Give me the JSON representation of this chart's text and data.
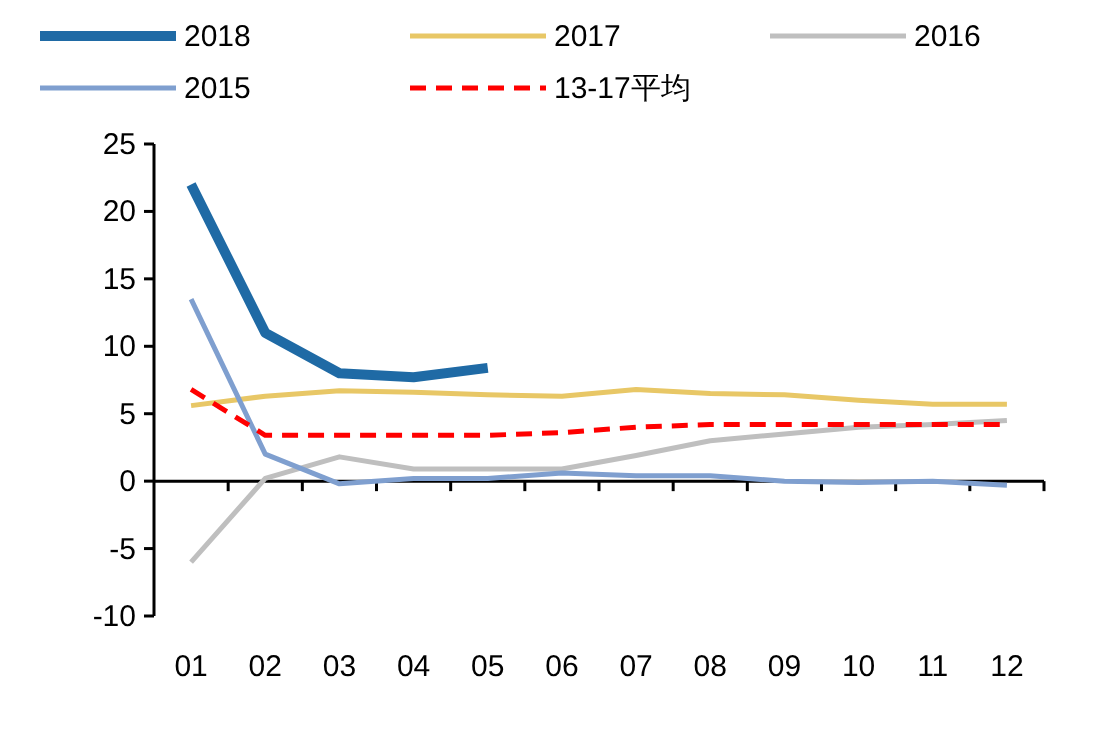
{
  "chart_data": {
    "type": "line",
    "categories": [
      "01",
      "02",
      "03",
      "04",
      "05",
      "06",
      "07",
      "08",
      "09",
      "10",
      "11",
      "12"
    ],
    "series": [
      {
        "name": "2018",
        "color": "#1f6aa5",
        "values": [
          22,
          11,
          8,
          7.7,
          8.4,
          null,
          null,
          null,
          null,
          null,
          null,
          null
        ]
      },
      {
        "name": "2017",
        "color": "#e8c766",
        "values": [
          5.6,
          6.3,
          6.7,
          6.6,
          6.4,
          6.3,
          6.8,
          6.5,
          6.4,
          6.0,
          5.7,
          5.7
        ]
      },
      {
        "name": "2016",
        "color": "#bfbfbf",
        "values": [
          -6,
          0.2,
          1.8,
          0.9,
          0.9,
          0.9,
          1.9,
          3.0,
          3.5,
          4.0,
          4.2,
          4.5
        ]
      },
      {
        "name": "2015",
        "color": "#7f9fcf",
        "values": [
          13.5,
          2,
          -0.2,
          0.2,
          0.2,
          0.6,
          0.4,
          0.4,
          0,
          -0.1,
          0,
          -0.3
        ]
      },
      {
        "name": "13-17平均",
        "color": "#ff0000",
        "line_style": "dashed",
        "values": [
          6.8,
          3.4,
          3.4,
          3.4,
          3.4,
          3.6,
          4.0,
          4.2,
          4.2,
          4.2,
          4.2,
          4.2
        ]
      }
    ],
    "ylim": [
      -10,
      25
    ],
    "yticks": [
      -10,
      -5,
      0,
      5,
      10,
      15,
      20,
      25
    ],
    "legend": "top",
    "marker": "none"
  }
}
